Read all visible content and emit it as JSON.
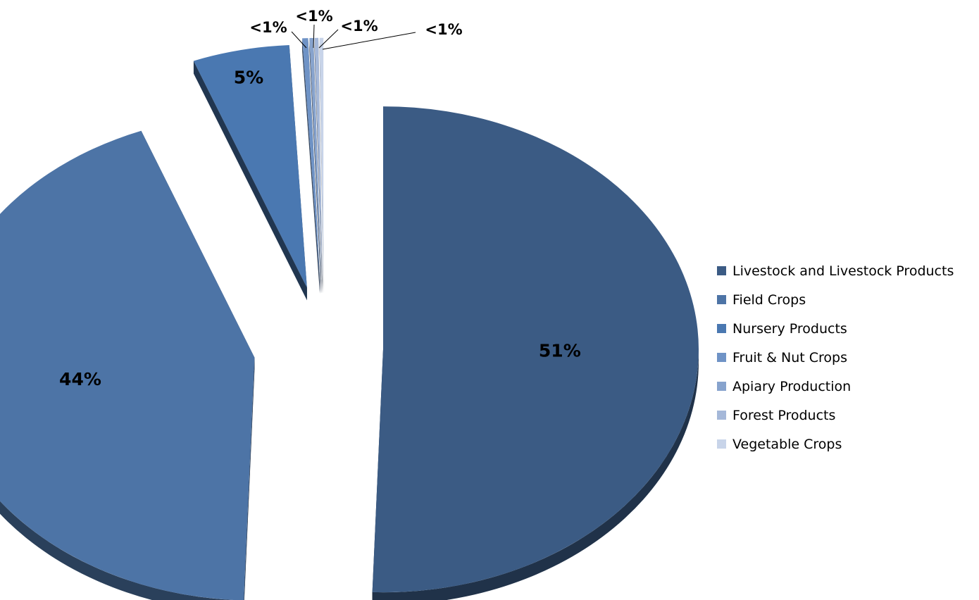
{
  "chart_data": {
    "type": "pie",
    "title": "",
    "style": "3d-exploded",
    "categories": [
      "Livestock and Livestock Products",
      "Field Crops",
      "Nursery Products",
      "Fruit & Nut Crops",
      "Apiary Production",
      "Forest Products",
      "Vegetable Crops"
    ],
    "values": [
      51,
      44,
      5,
      0.3,
      0.2,
      0.2,
      0.2
    ],
    "data_labels": [
      "51%",
      "44%",
      "5%",
      "<1%",
      "<1%",
      "<1%",
      "<1%"
    ],
    "colors": [
      "#3b5b84",
      "#4d74a6",
      "#4a78b1",
      "#6f93c6",
      "#87a3cd",
      "#a5b8d9",
      "#c8d4e9"
    ],
    "legend_position": "right"
  }
}
